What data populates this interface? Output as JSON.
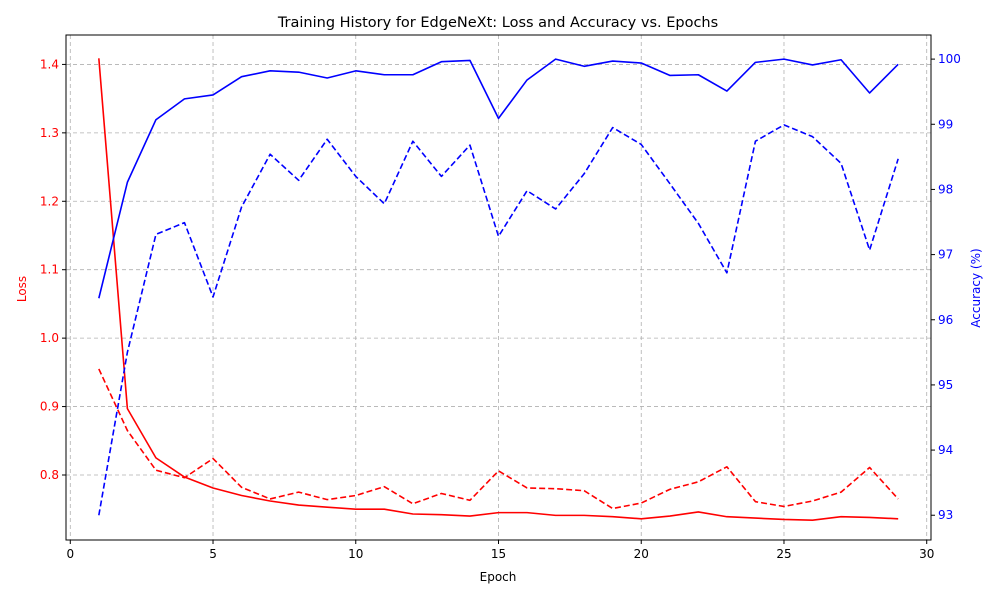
{
  "chart_data": {
    "type": "line",
    "title": "Training History for EdgeNeXt: Loss and Accuracy vs. Epochs",
    "xlabel": "Epoch",
    "ylabel_left": "Loss",
    "ylabel_right": "Accuracy (%)",
    "xlim": [
      -0.15,
      30.15
    ],
    "ylim_left": [
      0.705,
      1.443
    ],
    "ylim_right": [
      92.62,
      100.37
    ],
    "x_ticks": [
      0,
      5,
      10,
      15,
      20,
      25,
      30
    ],
    "y_left_ticks": [
      0.8,
      0.9,
      1.0,
      1.1,
      1.2,
      1.3,
      1.4
    ],
    "y_right_ticks": [
      93,
      94,
      95,
      96,
      97,
      98,
      99,
      100
    ],
    "grid": true,
    "grid_style": "dashed",
    "left_color": "#ff0000",
    "right_color": "#0000ff",
    "x": [
      1,
      2,
      3,
      4,
      5,
      6,
      7,
      8,
      9,
      10,
      11,
      12,
      13,
      14,
      15,
      16,
      17,
      18,
      19,
      20,
      21,
      22,
      23,
      24,
      25,
      26,
      27,
      28,
      29
    ],
    "series": [
      {
        "axis": "left",
        "color": "#ff0000",
        "dash": "solid",
        "values": [
          1.409,
          0.897,
          0.825,
          0.797,
          0.781,
          0.77,
          0.762,
          0.756,
          0.753,
          0.75,
          0.75,
          0.743,
          0.742,
          0.74,
          0.745,
          0.745,
          0.741,
          0.741,
          0.739,
          0.736,
          0.74,
          0.746,
          0.739,
          0.737,
          0.735,
          0.734,
          0.739,
          0.738,
          0.736
        ]
      },
      {
        "axis": "left",
        "color": "#ff0000",
        "dash": "dashed",
        "values": [
          0.955,
          0.865,
          0.807,
          0.796,
          0.824,
          0.782,
          0.765,
          0.775,
          0.764,
          0.77,
          0.783,
          0.758,
          0.773,
          0.763,
          0.806,
          0.781,
          0.78,
          0.777,
          0.751,
          0.759,
          0.779,
          0.79,
          0.812,
          0.761,
          0.754,
          0.762,
          0.775,
          0.811,
          0.765
        ]
      },
      {
        "axis": "right",
        "color": "#0000ff",
        "dash": "solid",
        "values": [
          96.33,
          98.11,
          99.07,
          99.39,
          99.45,
          99.73,
          99.82,
          99.8,
          99.71,
          99.82,
          99.76,
          99.76,
          99.96,
          99.98,
          99.09,
          99.68,
          100.0,
          99.89,
          99.97,
          99.94,
          99.75,
          99.76,
          99.51,
          99.95,
          100.0,
          99.91,
          99.99,
          99.48,
          99.92
        ]
      },
      {
        "axis": "right",
        "color": "#0000ff",
        "dash": "dashed",
        "values": [
          93.0,
          95.5,
          97.31,
          97.49,
          96.35,
          97.73,
          98.54,
          98.14,
          98.77,
          98.2,
          97.78,
          98.74,
          98.2,
          98.68,
          97.28,
          97.98,
          97.7,
          98.24,
          98.95,
          98.69,
          98.09,
          97.48,
          96.72,
          98.74,
          98.99,
          98.81,
          98.4,
          97.07,
          98.47
        ]
      }
    ]
  }
}
